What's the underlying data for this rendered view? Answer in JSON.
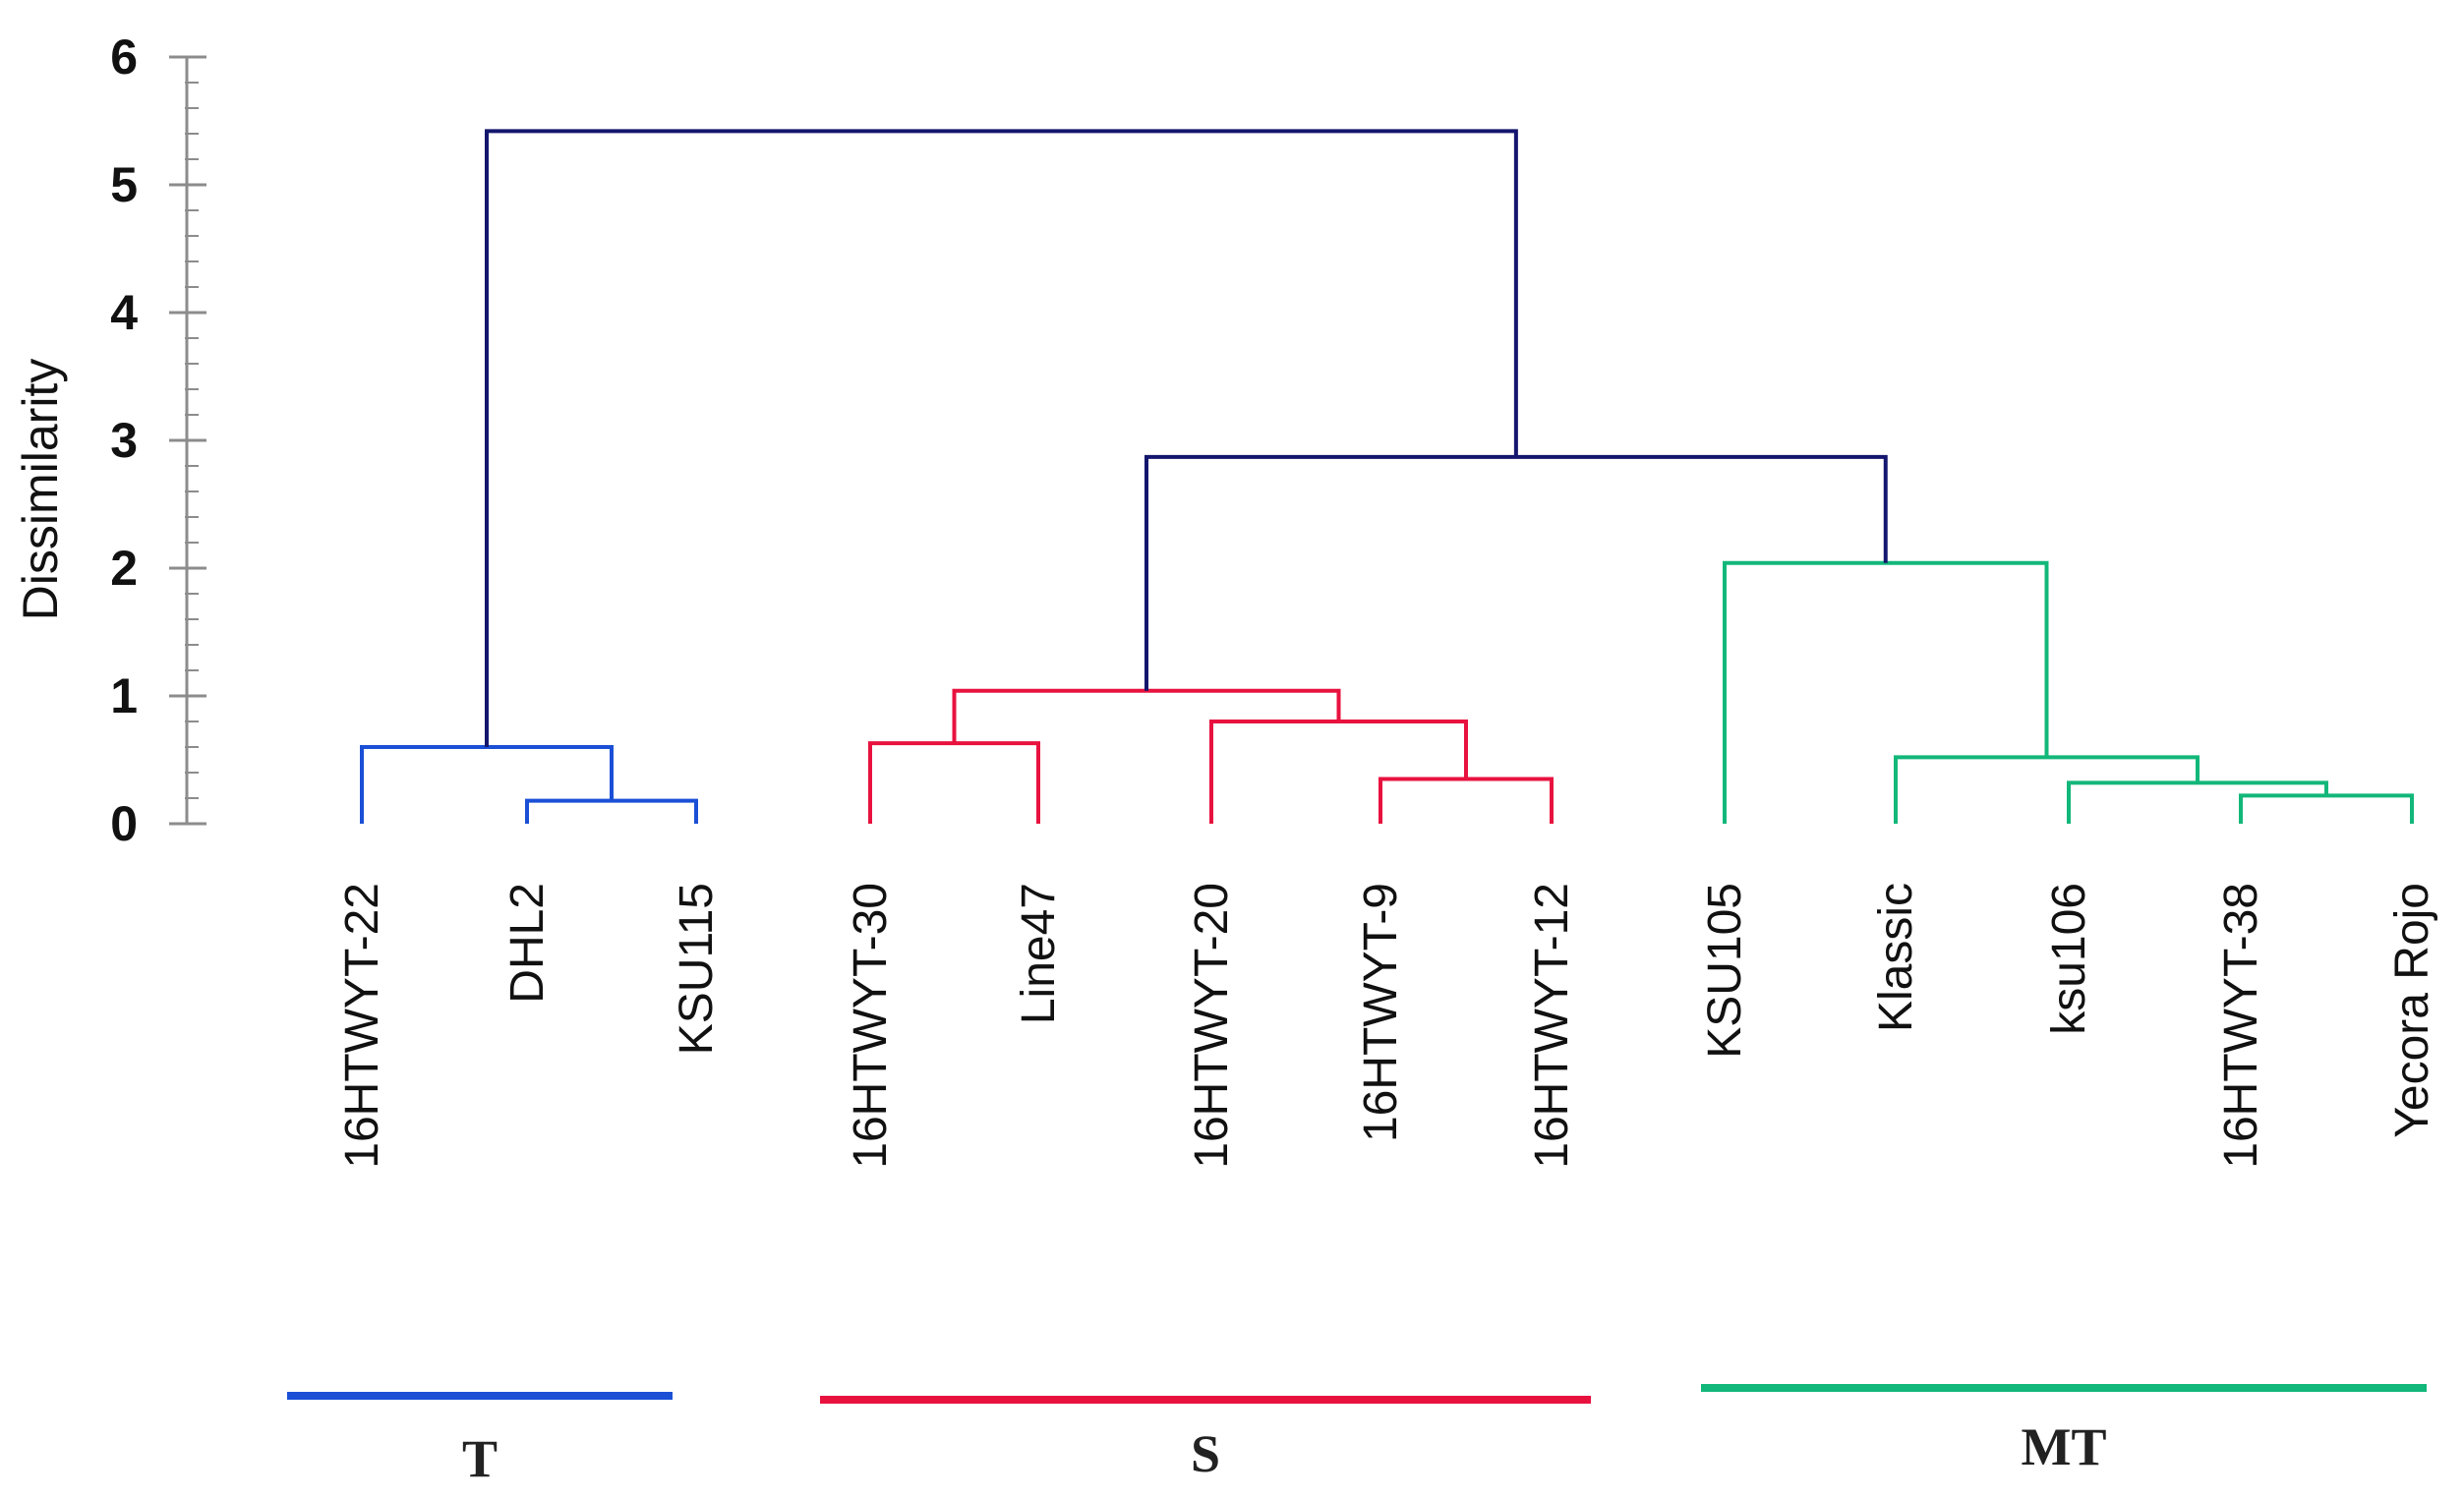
{
  "chart_data": {
    "type": "dendrogram",
    "ylabel": "Dissimilarity",
    "ylim": [
      0,
      6
    ],
    "yticks": [
      "0",
      "1",
      "2",
      "3",
      "4",
      "5",
      "6"
    ],
    "leaves": [
      "16HTWYT-22",
      "DHL2",
      "KSU115",
      "16HTWYT-30",
      "Line47",
      "16HTWYT-20",
      "16HTWYT-9",
      "16HTWYT-12",
      "KSU105",
      "Klassic",
      "ksu106",
      "16HTWYT-38",
      "Yecora Rojo"
    ],
    "merges": [
      {
        "left": "L1",
        "right": "L2",
        "height": 0.18,
        "cluster": "T"
      },
      {
        "left": "L0",
        "right": "M0",
        "height": 0.6,
        "cluster": "T"
      },
      {
        "left": "L6",
        "right": "L7",
        "height": 0.35,
        "cluster": "S"
      },
      {
        "left": "L3",
        "right": "L4",
        "height": 0.63,
        "cluster": "S"
      },
      {
        "left": "L5",
        "right": "M2",
        "height": 0.8,
        "cluster": "S"
      },
      {
        "left": "M3",
        "right": "M4",
        "height": 1.04,
        "cluster": "S"
      },
      {
        "left": "L11",
        "right": "L12",
        "height": 0.22,
        "cluster": "MT"
      },
      {
        "left": "L10",
        "right": "M6",
        "height": 0.32,
        "cluster": "MT"
      },
      {
        "left": "L9",
        "right": "M7",
        "height": 0.52,
        "cluster": "MT"
      },
      {
        "left": "L8",
        "right": "M8",
        "height": 2.04,
        "cluster": "MT"
      },
      {
        "left": "M5",
        "right": "M9",
        "height": 2.87,
        "cluster": "root"
      },
      {
        "left": "M1",
        "right": "M10",
        "height": 5.42,
        "cluster": "root"
      }
    ],
    "clusters": [
      {
        "name": "T",
        "label": "T",
        "color": "#1a4fd6"
      },
      {
        "name": "S",
        "label": "S",
        "color": "#e8123f"
      },
      {
        "name": "MT",
        "label": "MT",
        "color": "#12b77a"
      }
    ],
    "root_color": "#14166e",
    "axis_color": "#8c8c8c"
  }
}
